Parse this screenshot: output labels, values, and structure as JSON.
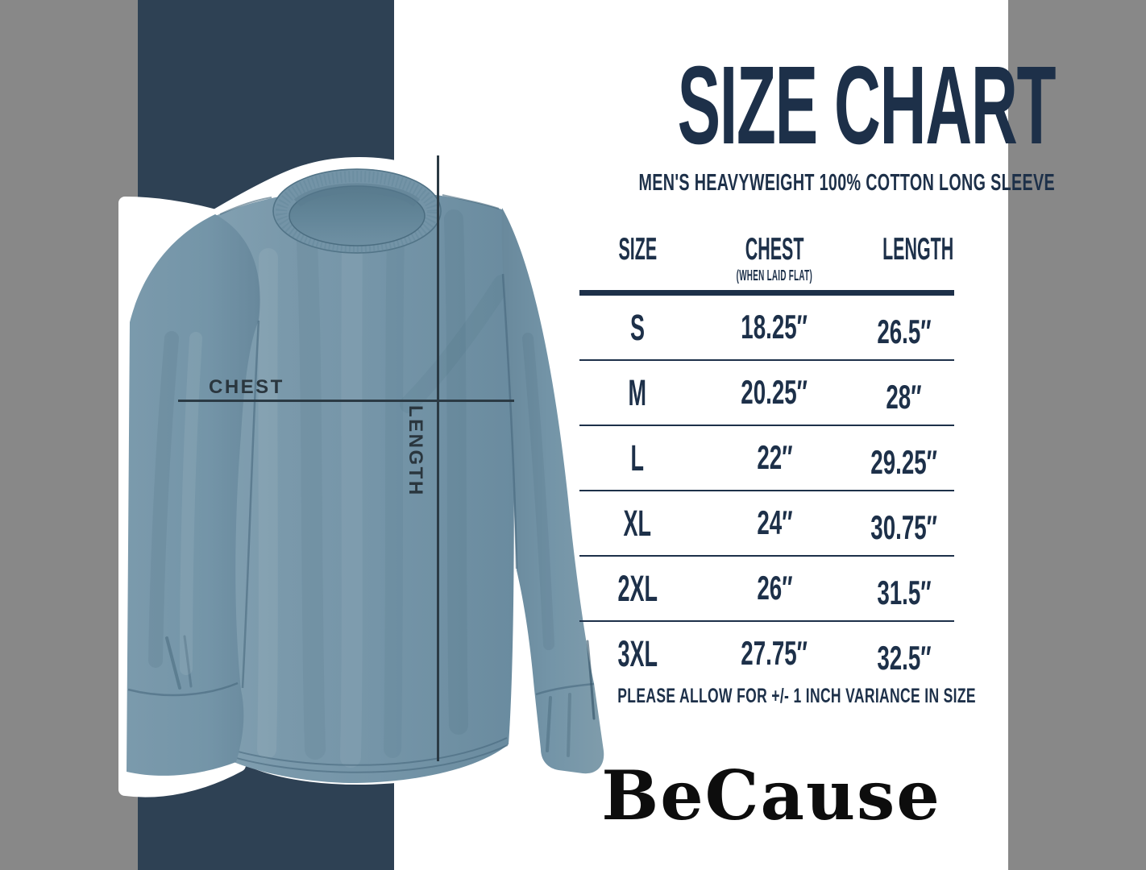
{
  "colors": {
    "background": "#ffffff",
    "band": "#2e4154",
    "navy": "#1d3049",
    "shirt": "#7797ab",
    "measure_line": "#2b3a44",
    "measure_label": "#2a363e",
    "brand_black": "#0d0d0d"
  },
  "shirt_diagram": {
    "chest_label": "CHEST",
    "length_label": "LENGTH"
  },
  "header": {
    "title": "SIZE CHART",
    "subtitle": "MEN'S HEAVYWEIGHT 100% COTTON LONG SLEEVE"
  },
  "table": {
    "columns": {
      "size": "SIZE",
      "chest": "CHEST",
      "chest_sub": "(WHEN LAID FLAT)",
      "length": "LENGTH"
    },
    "rows": [
      {
        "size": "S",
        "chest": "18.25″",
        "length": "26.5″"
      },
      {
        "size": "M",
        "chest": "20.25″",
        "length": "28″"
      },
      {
        "size": "L",
        "chest": "22″",
        "length": "29.25″"
      },
      {
        "size": "XL",
        "chest": "24″",
        "length": "30.75″"
      },
      {
        "size": "2XL",
        "chest": "26″",
        "length": "31.5″"
      },
      {
        "size": "3XL",
        "chest": "27.75″",
        "length": "32.5″"
      }
    ]
  },
  "footer": {
    "note": "PLEASE ALLOW FOR +/- 1 INCH VARIANCE IN SIZE",
    "brand": "BeCause"
  }
}
